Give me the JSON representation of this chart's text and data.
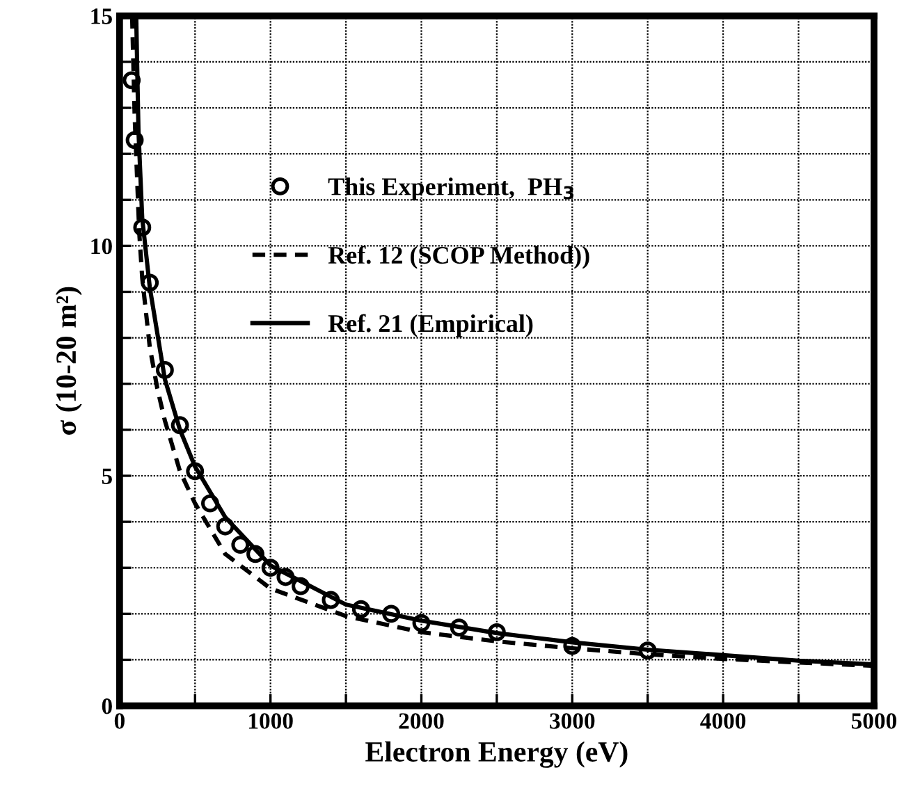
{
  "chart_data": {
    "type": "line",
    "xlabel": "Electron Energy (eV)",
    "ylabel": "σ (10-20 m²)",
    "xlim": [
      0,
      5000
    ],
    "ylim": [
      0,
      15
    ],
    "xticks": [
      0,
      {
        "value": 500,
        "label": null
      },
      1000,
      {
        "value": 1500,
        "label": null
      },
      2000,
      {
        "value": 2500,
        "label": null
      },
      3000,
      {
        "value": 3500,
        "label": null
      },
      4000,
      {
        "value": 4500,
        "label": null
      },
      5000
    ],
    "yticks": [
      0,
      {
        "value": 1,
        "label": null
      },
      {
        "value": 2,
        "label": null
      },
      {
        "value": 3,
        "label": null
      },
      {
        "value": 4,
        "label": null
      },
      5,
      {
        "value": 6,
        "label": null
      },
      {
        "value": 7,
        "label": null
      },
      {
        "value": 8,
        "label": null
      },
      {
        "value": 9,
        "label": null
      },
      10,
      {
        "value": 11,
        "label": null
      },
      {
        "value": 12,
        "label": null
      },
      {
        "value": 13,
        "label": null
      },
      {
        "value": 14,
        "label": null
      },
      15
    ],
    "grid": true,
    "legend": "center",
    "series": [
      {
        "name": "This Experiment,  PH$_{3}$",
        "type": "scatter",
        "marker": "circle",
        "color": "#000000",
        "x": [
          80,
          100,
          150,
          200,
          300,
          400,
          500,
          600,
          700,
          800,
          900,
          1000,
          1100,
          1200,
          1400,
          1600,
          1800,
          2000,
          2250,
          2500,
          3000,
          3500
        ],
        "values": [
          13.6,
          12.3,
          10.4,
          9.2,
          7.3,
          6.1,
          5.1,
          4.4,
          3.9,
          3.5,
          3.3,
          3.0,
          2.8,
          2.6,
          2.3,
          2.1,
          2.0,
          1.8,
          1.7,
          1.6,
          1.3,
          1.2
        ]
      },
      {
        "name": "Ref. 12 (SCOP Method))",
        "line_style": "dashed",
        "color": "#000000",
        "x": [
          83,
          100,
          130,
          150,
          200,
          250,
          300,
          400,
          500,
          700,
          1000,
          1500,
          2000,
          2500,
          3000,
          3500,
          4000,
          4500,
          5000
        ],
        "values": [
          15,
          12.8,
          10.3,
          9.3,
          7.8,
          6.9,
          6.2,
          5.1,
          4.4,
          3.3,
          2.55,
          1.95,
          1.6,
          1.4,
          1.25,
          1.12,
          1.02,
          0.94,
          0.87
        ]
      },
      {
        "name": "Ref. 21 (Empirical)",
        "line_style": "solid",
        "color": "#000000",
        "x": [
          110,
          125,
          150,
          200,
          300,
          400,
          500,
          700,
          1000,
          1500,
          2000,
          2500,
          3000,
          3500,
          4000,
          4500,
          5000
        ],
        "values": [
          15,
          12.5,
          10.6,
          9.1,
          7.1,
          6.0,
          5.2,
          4.1,
          3.05,
          2.2,
          1.85,
          1.58,
          1.38,
          1.22,
          1.1,
          0.98,
          0.9
        ]
      }
    ]
  }
}
